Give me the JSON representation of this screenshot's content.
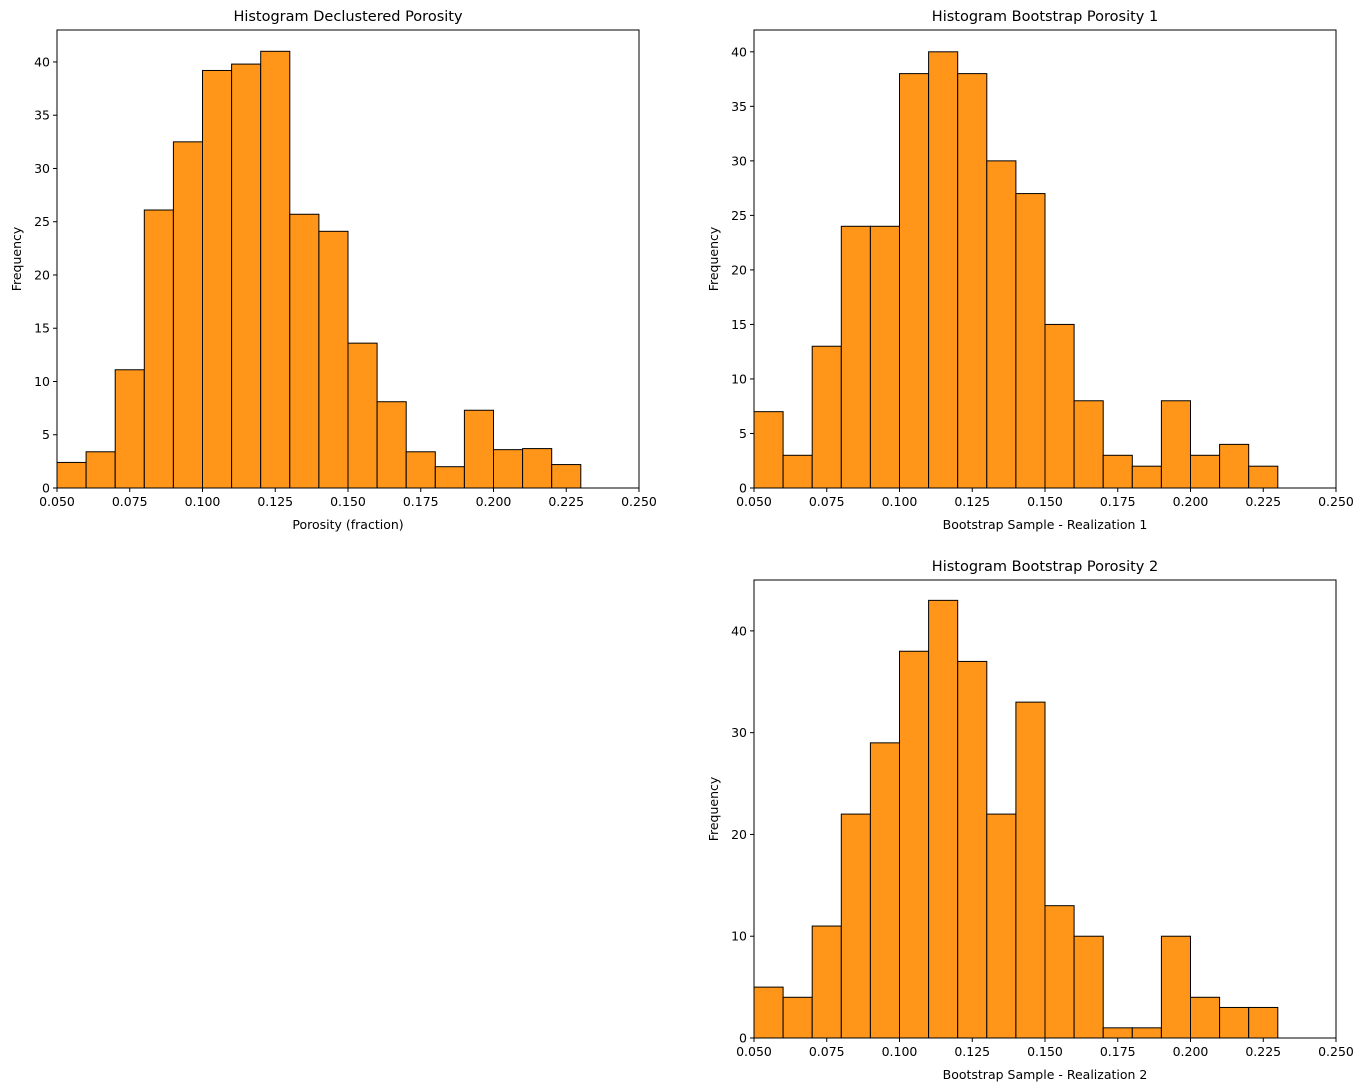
{
  "chart_data": [
    {
      "type": "bar",
      "title": "Histogram Declustered Porosity",
      "xlabel": "Porosity (fraction)",
      "ylabel": "Frequency",
      "xlim": [
        0.05,
        0.25
      ],
      "ylim": [
        0,
        43
      ],
      "xticks": [
        "0.050",
        "0.075",
        "0.100",
        "0.125",
        "0.150",
        "0.175",
        "0.200",
        "0.225",
        "0.250"
      ],
      "yticks": [
        0,
        5,
        10,
        15,
        20,
        25,
        30,
        35,
        40
      ],
      "bin_edges": [
        0.05,
        0.06,
        0.07,
        0.08,
        0.09,
        0.1,
        0.11,
        0.12,
        0.13,
        0.14,
        0.15,
        0.16,
        0.17,
        0.18,
        0.19,
        0.2,
        0.21,
        0.22,
        0.23
      ],
      "values": [
        2.4,
        3.4,
        11.1,
        26.1,
        32.5,
        39.2,
        39.8,
        41.0,
        25.7,
        24.1,
        13.6,
        8.1,
        3.4,
        2.0,
        7.3,
        3.6,
        3.7,
        2.2
      ],
      "bar_color": "#ff9619",
      "edge_color": "#000000"
    },
    {
      "type": "bar",
      "title": "Histogram Bootstrap Porosity 1",
      "xlabel": "Bootstrap Sample - Realization 1",
      "ylabel": "Frequency",
      "xlim": [
        0.05,
        0.25
      ],
      "ylim": [
        0,
        42
      ],
      "xticks": [
        "0.050",
        "0.075",
        "0.100",
        "0.125",
        "0.150",
        "0.175",
        "0.200",
        "0.225",
        "0.250"
      ],
      "yticks": [
        0,
        5,
        10,
        15,
        20,
        25,
        30,
        35,
        40
      ],
      "bin_edges": [
        0.05,
        0.06,
        0.07,
        0.08,
        0.09,
        0.1,
        0.11,
        0.12,
        0.13,
        0.14,
        0.15,
        0.16,
        0.17,
        0.18,
        0.19,
        0.2,
        0.21,
        0.22,
        0.23
      ],
      "values": [
        7,
        3,
        13,
        24,
        24,
        38,
        40,
        38,
        30,
        27,
        15,
        8,
        3,
        2,
        8,
        3,
        4,
        2
      ],
      "bar_color": "#ff9619",
      "edge_color": "#000000"
    },
    {
      "type": "bar",
      "title": "Histogram Bootstrap Porosity 2",
      "xlabel": "Bootstrap Sample - Realization 2",
      "ylabel": "Frequency",
      "xlim": [
        0.05,
        0.25
      ],
      "ylim": [
        0,
        45
      ],
      "xticks": [
        "0.050",
        "0.075",
        "0.100",
        "0.125",
        "0.150",
        "0.175",
        "0.200",
        "0.225",
        "0.250"
      ],
      "yticks": [
        0,
        10,
        20,
        30,
        40
      ],
      "bin_edges": [
        0.05,
        0.06,
        0.07,
        0.08,
        0.09,
        0.1,
        0.11,
        0.12,
        0.13,
        0.14,
        0.15,
        0.16,
        0.17,
        0.18,
        0.19,
        0.2,
        0.21,
        0.22,
        0.23
      ],
      "values": [
        5,
        4,
        11,
        22,
        29,
        38,
        43,
        37,
        22,
        33,
        13,
        10,
        1,
        1,
        10,
        4,
        3,
        3
      ],
      "bar_color": "#ff9619",
      "edge_color": "#000000"
    }
  ]
}
